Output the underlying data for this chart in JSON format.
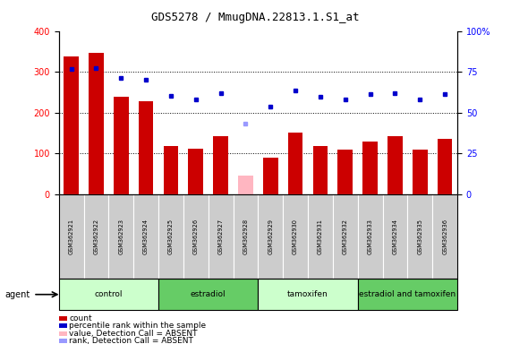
{
  "title": "GDS5278 / MmugDNA.22813.1.S1_at",
  "samples": [
    "GSM362921",
    "GSM362922",
    "GSM362923",
    "GSM362924",
    "GSM362925",
    "GSM362926",
    "GSM362927",
    "GSM362928",
    "GSM362929",
    "GSM362930",
    "GSM362931",
    "GSM362932",
    "GSM362933",
    "GSM362934",
    "GSM362935",
    "GSM362936"
  ],
  "counts": [
    338,
    347,
    240,
    228,
    118,
    112,
    143,
    45,
    90,
    152,
    118,
    110,
    130,
    143,
    110,
    135
  ],
  "counts_absent": [
    false,
    false,
    false,
    false,
    false,
    false,
    false,
    true,
    false,
    false,
    false,
    false,
    false,
    false,
    false,
    false
  ],
  "percentile_ranks_pct": [
    77,
    77.5,
    71,
    70,
    60.5,
    58,
    62,
    43.5,
    53.75,
    63.5,
    59.5,
    58,
    61.5,
    62,
    58,
    61.5
  ],
  "rank_absent": [
    false,
    false,
    false,
    false,
    false,
    false,
    false,
    true,
    false,
    false,
    false,
    false,
    false,
    false,
    false,
    false
  ],
  "groups": [
    {
      "name": "control",
      "start": 0,
      "end": 4,
      "color": "#ccffcc"
    },
    {
      "name": "estradiol",
      "start": 4,
      "end": 8,
      "color": "#66cc66"
    },
    {
      "name": "tamoxifen",
      "start": 8,
      "end": 12,
      "color": "#ccffcc"
    },
    {
      "name": "estradiol and tamoxifen",
      "start": 12,
      "end": 16,
      "color": "#66cc66"
    }
  ],
  "bar_color_present": "#cc0000",
  "bar_color_absent": "#ffb6c1",
  "dot_color_present": "#0000cc",
  "dot_color_absent": "#9999ff",
  "ylim_left": [
    0,
    400
  ],
  "ylim_right": [
    0,
    100
  ],
  "background_color": "#ffffff",
  "agent_label": "agent",
  "legend_items": [
    {
      "label": "count",
      "color": "#cc0000"
    },
    {
      "label": "percentile rank within the sample",
      "color": "#0000cc"
    },
    {
      "label": "value, Detection Call = ABSENT",
      "color": "#ffb6c1"
    },
    {
      "label": "rank, Detection Call = ABSENT",
      "color": "#9999ff"
    }
  ],
  "sample_box_color": "#cccccc",
  "sample_box_edge": "#ffffff"
}
